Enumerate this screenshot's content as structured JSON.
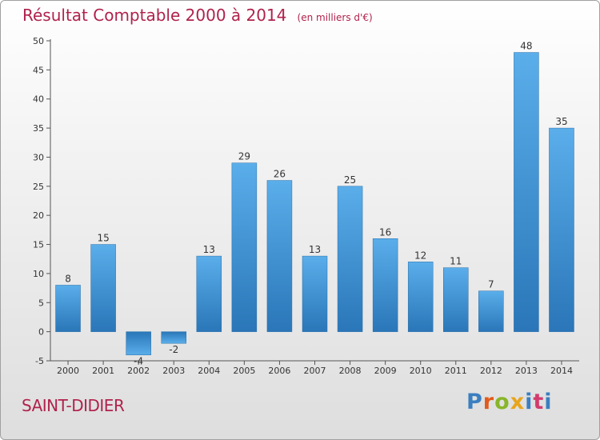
{
  "chart_data": {
    "type": "bar",
    "title": "Résultat Comptable 2000 à 2014",
    "subtitle": "(en milliers d'€)",
    "categories": [
      "2000",
      "2001",
      "2002",
      "2003",
      "2004",
      "2005",
      "2006",
      "2007",
      "2008",
      "2009",
      "2010",
      "2011",
      "2012",
      "2013",
      "2014"
    ],
    "values": [
      8,
      15,
      -4,
      -2,
      13,
      29,
      26,
      13,
      25,
      16,
      12,
      11,
      7,
      48,
      35
    ],
    "data_labels": [
      "8",
      "15",
      "-4",
      "-2",
      "13",
      "29",
      "26",
      "13",
      "25",
      "16",
      "12",
      "11",
      "7",
      "48",
      "35"
    ],
    "ylim": [
      -5,
      50
    ],
    "yticks": [
      -5,
      0,
      5,
      10,
      15,
      20,
      25,
      30,
      35,
      40,
      45,
      50
    ],
    "grid": false,
    "bar_color": "#3d8fd3"
  },
  "footer": {
    "city": "SAINT-DIDIER",
    "brand": "Proxiti",
    "brand_letter_colors": [
      "#3a7fc0",
      "#e25b1b",
      "#88b52a",
      "#e8a51c",
      "#3a7fc0",
      "#d23c6e",
      "#3a7fc0"
    ]
  },
  "colors": {
    "title": "#b0224c",
    "axis": "#555555"
  }
}
